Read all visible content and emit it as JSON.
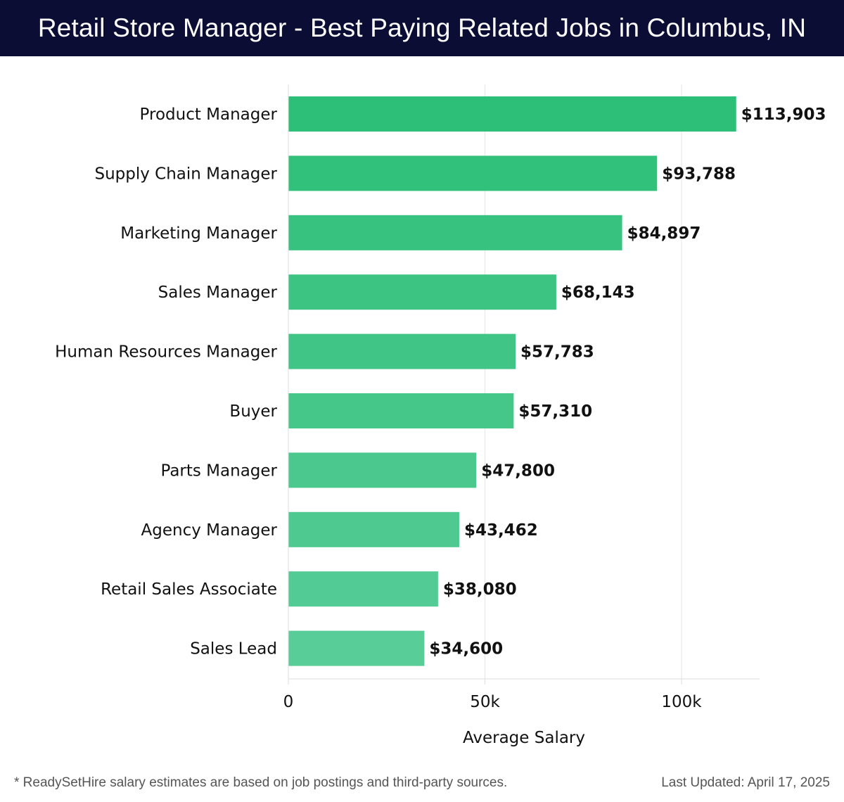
{
  "header": {
    "title": "Retail Store Manager - Best Paying Related Jobs in Columbus, IN"
  },
  "chart_data": {
    "type": "bar",
    "orientation": "horizontal",
    "title": "Retail Store Manager - Best Paying Related Jobs in Columbus, IN",
    "xlabel": "Average Salary",
    "ylabel": "",
    "xlim": [
      0,
      120000
    ],
    "xticks": [
      0,
      50000,
      100000
    ],
    "xtick_labels": [
      "0",
      "50k",
      "100k"
    ],
    "grid": "vertical",
    "legend": "none",
    "categories": [
      "Product Manager",
      "Supply Chain Manager",
      "Marketing Manager",
      "Sales Manager",
      "Human Resources Manager",
      "Buyer",
      "Parts Manager",
      "Agency Manager",
      "Retail Sales Associate",
      "Sales Lead"
    ],
    "values": [
      113903,
      93788,
      84897,
      68143,
      57783,
      57310,
      47800,
      43462,
      38080,
      34600
    ],
    "value_labels": [
      "$113,903",
      "$93,788",
      "$84,897",
      "$68,143",
      "$57,783",
      "$57,310",
      "$47,800",
      "$43,462",
      "$38,080",
      "$34,600"
    ],
    "colors": {
      "bar_top": "#2dbf78",
      "bar_bottom": "#58cd97",
      "grid": "#e6e6e6",
      "axis": "#dddddd"
    }
  },
  "footer": {
    "footnote": "* ReadySetHire salary estimates are based on job postings and third-party sources.",
    "last_updated": "Last Updated: April 17, 2025"
  }
}
